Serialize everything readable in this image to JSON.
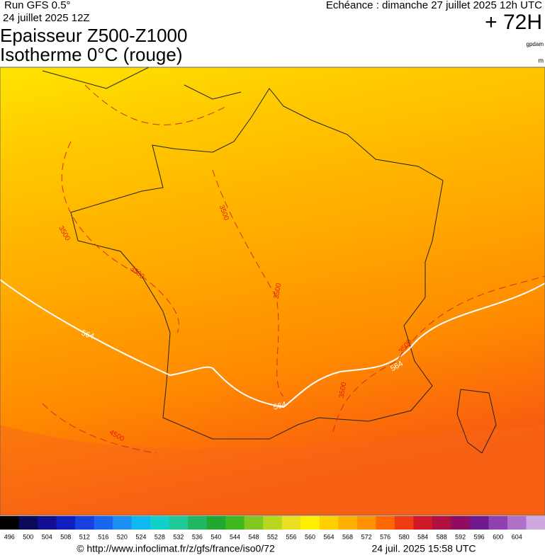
{
  "header": {
    "run": "Run GFS 0.5°",
    "run_date": "24 juillet 2025 12Z",
    "valid": "Echéance : dimanche 27 juillet 2025 12h UTC",
    "lead": "+ 72H",
    "title1": "Epaisseur Z500-Z1000",
    "title2": "Isotherme 0°C (rouge)",
    "unit1": "gpdam",
    "unit2": "m"
  },
  "map": {
    "contour_labels": [
      "3500",
      "3500",
      "3500",
      "3500",
      "3500",
      "3500",
      "4500",
      "564",
      "564",
      "564"
    ]
  },
  "colorbar": {
    "labels": [
      496,
      500,
      504,
      508,
      512,
      516,
      520,
      524,
      528,
      532,
      536,
      540,
      544,
      548,
      552,
      556,
      560,
      564,
      568,
      572,
      576,
      580,
      584,
      588,
      592,
      596,
      600,
      604
    ],
    "colors": [
      "#000000",
      "#0a0a5a",
      "#101090",
      "#1020c0",
      "#1840e0",
      "#1a66f0",
      "#1c90f0",
      "#10b8f0",
      "#10d0c8",
      "#20c898",
      "#20b860",
      "#20a830",
      "#40b820",
      "#80c820",
      "#b8d820",
      "#e8e020",
      "#fff000",
      "#ffd000",
      "#ffb000",
      "#ff9000",
      "#ff6800",
      "#f03c10",
      "#d01828",
      "#b01040",
      "#900c60",
      "#701890",
      "#9040b0",
      "#b070c8",
      "#d0a8e0"
    ]
  },
  "footer": {
    "url": "© http://www.infoclimat.fr/z/gfs/france/iso0/72",
    "timestamp": "24 juil. 2025 15:58 UTC"
  }
}
